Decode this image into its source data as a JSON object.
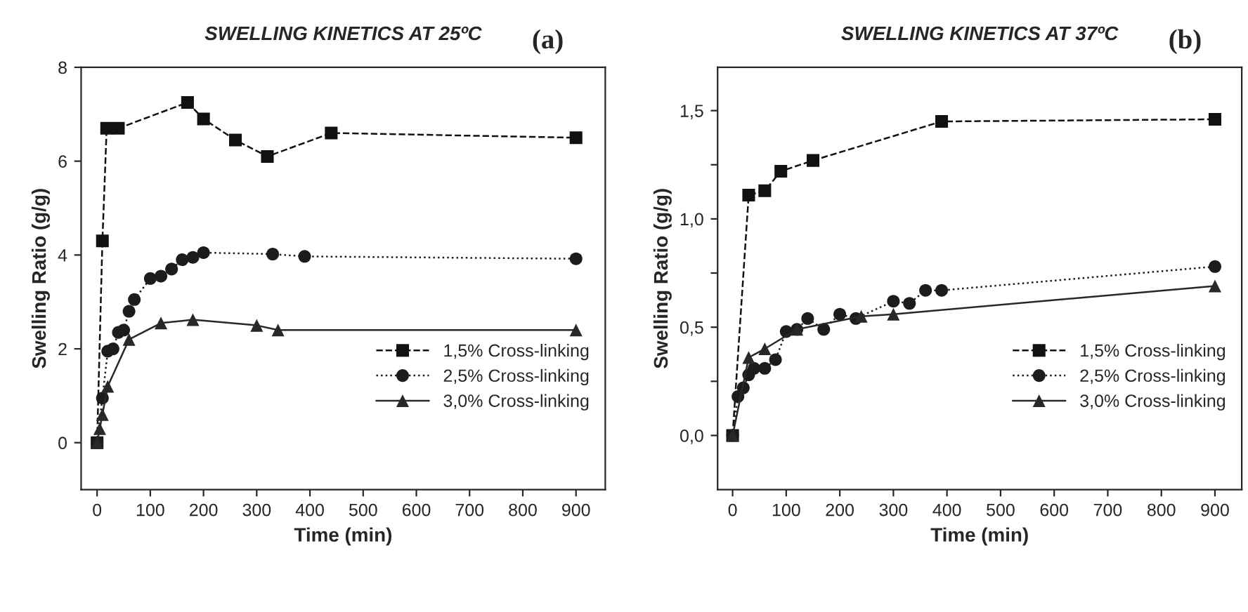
{
  "chart_data": [
    {
      "type": "line",
      "title": "SWELLING KINETICS AT 25ºC",
      "annotations": [
        "(a)"
      ],
      "xlabel": "Time (min)",
      "ylabel": "Swelling Ratio (g/g)",
      "xlim": [
        -30,
        955
      ],
      "xticks": [
        0,
        100,
        200,
        300,
        400,
        500,
        600,
        700,
        800,
        900
      ],
      "ylim": [
        -1,
        8
      ],
      "yticks": [
        0,
        2,
        4,
        6,
        8
      ],
      "legend": "bottom right",
      "grid": false,
      "series": [
        {
          "name": "1,5% Cross-linking",
          "color": "#111111",
          "marker": "square",
          "line_style": "dashed",
          "x": [
            0,
            10,
            18,
            40,
            170,
            200,
            260,
            320,
            440,
            900
          ],
          "values": [
            0,
            4.3,
            6.7,
            6.7,
            7.25,
            6.9,
            6.45,
            6.1,
            6.6,
            6.5
          ]
        },
        {
          "name": "2,5% Cross-linking",
          "color": "#1c1c1c",
          "marker": "circle",
          "line_style": "dotted",
          "x": [
            0,
            10,
            20,
            30,
            40,
            50,
            60,
            70,
            100,
            120,
            140,
            160,
            180,
            200,
            330,
            390,
            900
          ],
          "values": [
            0,
            0.95,
            1.95,
            2.0,
            2.35,
            2.4,
            2.8,
            3.05,
            3.5,
            3.55,
            3.7,
            3.9,
            3.95,
            4.05,
            4.02,
            3.97,
            3.92
          ]
        },
        {
          "name": "3,0% Cross-linking",
          "color": "#282828",
          "marker": "triangle",
          "line_style": "solid",
          "x": [
            0,
            5,
            10,
            20,
            60,
            120,
            180,
            300,
            340,
            900
          ],
          "values": [
            0,
            0.3,
            0.6,
            1.2,
            2.2,
            2.55,
            2.62,
            2.5,
            2.4,
            2.4
          ]
        }
      ]
    },
    {
      "type": "line",
      "title": "SWELLING KINETICS AT 37ºC",
      "annotations": [
        "(b)"
      ],
      "xlabel": "Time (min)",
      "ylabel": "Swelling Ratio (g/g)",
      "xlim": [
        -28,
        950
      ],
      "xticks": [
        0,
        100,
        200,
        300,
        400,
        500,
        600,
        700,
        800,
        900
      ],
      "ylim": [
        -0.25,
        1.7
      ],
      "yticks": [
        {
          "value": 0,
          "label": "0,0"
        },
        {
          "value": 0.25,
          "label": null
        },
        {
          "value": 0.5,
          "label": "0,5"
        },
        {
          "value": 0.75,
          "label": null
        },
        {
          "value": 1,
          "label": "1,0"
        },
        {
          "value": 1.25,
          "label": null
        },
        {
          "value": 1.5,
          "label": "1,5"
        }
      ],
      "legend": "bottom right",
      "grid": false,
      "series": [
        {
          "name": "1,5% Cross-linking",
          "color": "#111111",
          "marker": "square",
          "line_style": "dashed",
          "x": [
            0,
            30,
            60,
            90,
            150,
            390,
            900
          ],
          "values": [
            0,
            1.11,
            1.13,
            1.22,
            1.27,
            1.45,
            1.46
          ]
        },
        {
          "name": "2,5% Cross-linking",
          "color": "#1c1c1c",
          "marker": "circle",
          "line_style": "dotted",
          "x": [
            0,
            10,
            20,
            30,
            40,
            60,
            80,
            100,
            120,
            140,
            170,
            200,
            230,
            300,
            330,
            360,
            390,
            900
          ],
          "values": [
            0,
            0.18,
            0.22,
            0.28,
            0.31,
            0.31,
            0.35,
            0.48,
            0.49,
            0.54,
            0.49,
            0.56,
            0.54,
            0.62,
            0.61,
            0.67,
            0.67,
            0.78
          ]
        },
        {
          "name": "3,0% Cross-linking",
          "color": "#282828",
          "marker": "triangle",
          "line_style": "solid",
          "x": [
            0,
            30,
            60,
            120,
            240,
            300,
            900
          ],
          "values": [
            0,
            0.36,
            0.4,
            0.49,
            0.55,
            0.56,
            0.69
          ]
        }
      ]
    }
  ]
}
